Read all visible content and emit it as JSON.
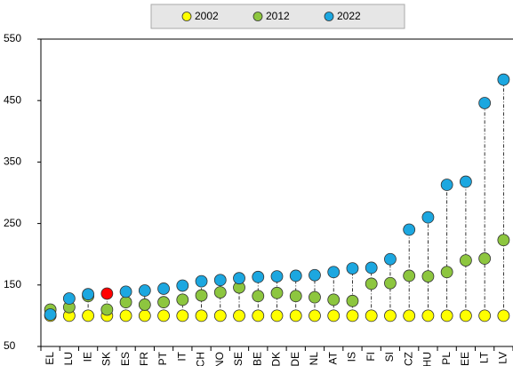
{
  "chart_data": {
    "type": "dot",
    "categories": [
      "EL",
      "LU",
      "IE",
      "SK",
      "ES",
      "FR",
      "PT",
      "IT",
      "CH",
      "NO",
      "SE",
      "BE",
      "DK",
      "DE",
      "NL",
      "AT",
      "IS",
      "FI",
      "SI",
      "CZ",
      "HU",
      "PL",
      "EE",
      "LT",
      "LV"
    ],
    "series": [
      {
        "name": "2002",
        "color": "#ffff00",
        "values": [
          100,
          100,
          100,
          100,
          100,
          100,
          100,
          100,
          100,
          100,
          100,
          100,
          100,
          100,
          100,
          100,
          100,
          100,
          100,
          100,
          100,
          100,
          100,
          100,
          100
        ]
      },
      {
        "name": "2012",
        "color": "#8dc63f",
        "values": [
          110,
          114,
          132,
          110,
          122,
          118,
          122,
          126,
          133,
          138,
          146,
          132,
          137,
          132,
          130,
          126,
          124,
          152,
          153,
          165,
          164,
          171,
          190,
          193,
          223
        ]
      },
      {
        "name": "2022",
        "color": "#1ca7e0",
        "values": [
          102,
          128,
          135,
          136,
          139,
          141,
          144,
          149,
          156,
          158,
          161,
          163,
          164,
          165,
          166,
          171,
          177,
          178,
          192,
          240,
          260,
          313,
          318,
          446,
          484
        ]
      }
    ],
    "highlight": {
      "category": "SK",
      "color": "#ff0000"
    },
    "ylim": [
      50,
      550
    ],
    "yticks": [
      50,
      150,
      250,
      350,
      450,
      550
    ],
    "grid": false,
    "legend": "top"
  }
}
